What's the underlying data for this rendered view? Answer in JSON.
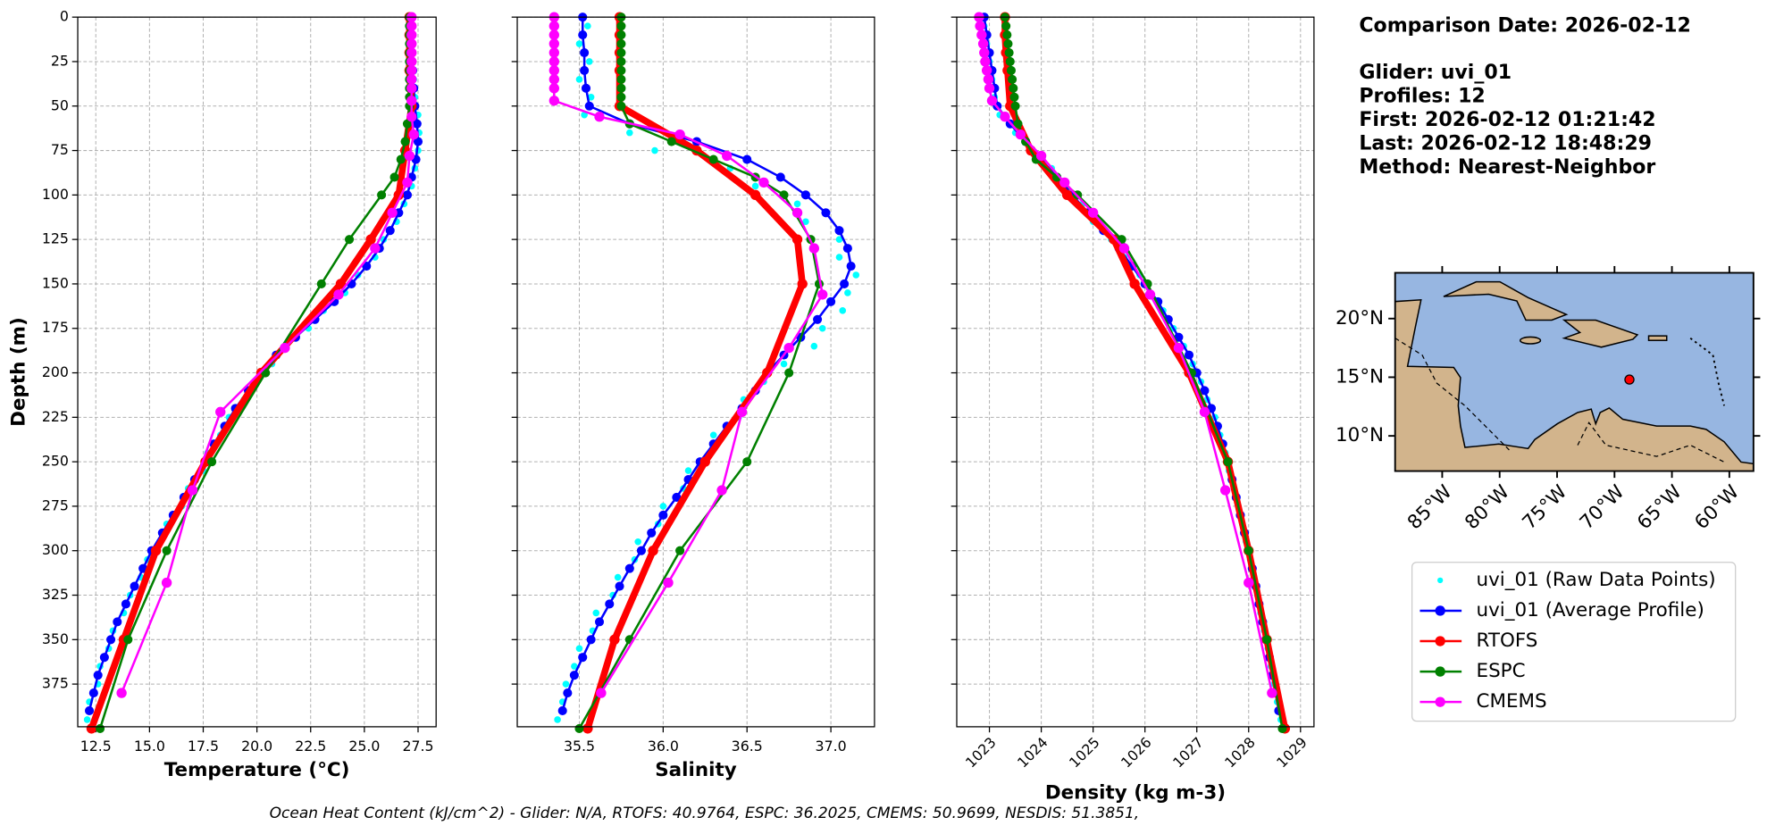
{
  "info_lines": [
    "Comparison Date: 2026-02-12",
    "Glider: uvi_01",
    "Profiles: 12",
    "First: 2026-02-12 01:21:42",
    "Last: 2026-02-12 18:48:29",
    "Method: Nearest-Neighbor"
  ],
  "footer": "Ocean Heat Content (kJ/cm^2) - Glider: N/A,  RTOFS: 40.9764,  ESPC: 36.2025,  CMEMS: 50.9699,  NESDIS: 51.3851,",
  "depth_axis": {
    "label": "Depth (m)",
    "lim": [
      0,
      399
    ],
    "ticks": [
      0,
      25,
      50,
      75,
      100,
      125,
      150,
      175,
      200,
      225,
      250,
      275,
      300,
      325,
      350,
      375
    ]
  },
  "series_depths": [
    [
      5,
      15,
      25,
      35,
      45,
      55,
      65,
      75,
      85,
      95,
      105,
      115,
      125,
      135,
      145,
      155,
      165,
      175,
      185,
      195,
      205,
      215,
      225,
      235,
      245,
      255,
      265,
      275,
      285,
      295,
      305,
      315,
      325,
      335,
      345,
      355,
      365,
      375,
      385,
      395
    ],
    [
      0,
      10,
      20,
      30,
      40,
      50,
      60,
      70,
      80,
      90,
      100,
      110,
      120,
      130,
      140,
      150,
      160,
      170,
      180,
      190,
      200,
      210,
      220,
      230,
      240,
      250,
      260,
      270,
      280,
      290,
      300,
      310,
      320,
      330,
      340,
      350,
      360,
      370,
      380,
      390
    ],
    [
      0,
      10,
      20,
      30,
      50,
      75,
      100,
      125,
      150,
      200,
      250,
      300,
      350,
      400
    ],
    [
      0,
      5,
      10,
      15,
      20,
      25,
      30,
      35,
      40,
      45,
      50,
      60,
      70,
      80,
      90,
      100,
      125,
      150,
      200,
      250,
      300,
      350,
      400
    ],
    [
      0,
      5,
      10,
      15,
      20,
      25,
      30,
      35,
      40,
      47,
      56,
      66,
      78,
      93,
      110,
      130,
      156,
      186,
      222,
      266,
      318,
      380
    ]
  ],
  "chart_data": [
    {
      "type": "line",
      "xlabel": "Temperature (°C)",
      "xlim": [
        11.66,
        28.34
      ],
      "grid": true,
      "xticks": [
        12.5,
        {
          "value": 15,
          "label": "15.0"
        },
        17.5,
        {
          "value": 20,
          "label": "20.0"
        },
        22.5,
        {
          "value": 25,
          "label": "25.0"
        },
        27.5
      ],
      "series": [
        {
          "name": "uvi_01 (Raw Data Points)",
          "marker_only": true,
          "color": "#00ffff",
          "values": [
            27.2,
            27.25,
            27.2,
            27.3,
            27.35,
            27.5,
            27.55,
            27.5,
            27.35,
            27.2,
            26.85,
            26.5,
            25.9,
            25.5,
            24.7,
            24.1,
            23.1,
            22.4,
            21.3,
            20.7,
            19.9,
            19.4,
            18.7,
            18.3,
            17.7,
            17.5,
            16.8,
            16.5,
            15.8,
            15.5,
            14.9,
            14.6,
            14.1,
            13.8,
            13.3,
            13.1,
            12.7,
            12.6,
            12.2,
            12.1
          ]
        },
        {
          "name": "uvi_01 (Average Profile)",
          "color": "#0000ff",
          "values": [
            27.2,
            27.2,
            27.2,
            27.25,
            27.3,
            27.35,
            27.45,
            27.5,
            27.4,
            27.2,
            27.0,
            26.6,
            26.2,
            25.7,
            25.1,
            24.4,
            23.6,
            22.7,
            21.8,
            20.9,
            20.2,
            19.6,
            19.0,
            18.5,
            18.0,
            17.6,
            17.1,
            16.6,
            16.1,
            15.6,
            15.1,
            14.7,
            14.3,
            13.9,
            13.5,
            13.2,
            12.9,
            12.6,
            12.4,
            12.2
          ]
        },
        {
          "name": "RTOFS",
          "color": "#ff0000",
          "values": [
            27.1,
            27.1,
            27.1,
            27.1,
            27.2,
            26.9,
            26.6,
            25.3,
            23.9,
            20.2,
            17.6,
            15.3,
            13.8,
            12.3
          ]
        },
        {
          "name": "ESPC",
          "color": "#008000",
          "values": [
            27.1,
            27.1,
            27.1,
            27.1,
            27.1,
            27.1,
            27.1,
            27.1,
            27.1,
            27.1,
            27.1,
            27.0,
            26.9,
            26.7,
            26.4,
            25.8,
            24.3,
            23.0,
            20.4,
            17.9,
            15.8,
            14.0,
            12.7
          ]
        },
        {
          "name": "CMEMS",
          "color": "#ff00ff",
          "values": [
            27.2,
            27.2,
            27.2,
            27.2,
            27.2,
            27.2,
            27.2,
            27.2,
            27.2,
            27.2,
            27.2,
            27.3,
            27.1,
            27.0,
            26.3,
            25.5,
            23.8,
            21.3,
            18.3,
            17.0,
            15.8,
            13.7
          ]
        }
      ]
    },
    {
      "type": "line",
      "xlabel": "Salinity",
      "xlim": [
        35.13,
        37.26
      ],
      "grid": true,
      "xticks": [
        35.5,
        {
          "value": 36,
          "label": "36.0"
        },
        36.5,
        {
          "value": 37,
          "label": "37.0"
        }
      ],
      "series": [
        {
          "marker_only": true,
          "color": "#00ffff",
          "values": [
            35.55,
            35.5,
            35.56,
            35.5,
            35.57,
            35.53,
            35.8,
            35.95,
            36.4,
            36.55,
            36.8,
            36.85,
            37.05,
            37.05,
            37.15,
            37.1,
            37.07,
            36.95,
            36.9,
            36.72,
            36.6,
            36.48,
            36.45,
            36.3,
            36.28,
            36.15,
            36.12,
            36.0,
            35.97,
            35.85,
            35.83,
            35.73,
            35.7,
            35.6,
            35.58,
            35.5,
            35.47,
            35.42,
            35.4,
            35.37
          ]
        },
        {
          "color": "#0000ff",
          "values": [
            35.52,
            35.52,
            35.53,
            35.53,
            35.54,
            35.56,
            35.8,
            36.2,
            36.5,
            36.7,
            36.85,
            36.97,
            37.05,
            37.1,
            37.12,
            37.08,
            37.0,
            36.92,
            36.82,
            36.72,
            36.62,
            36.55,
            36.47,
            36.38,
            36.3,
            36.22,
            36.15,
            36.08,
            36.0,
            35.93,
            35.87,
            35.8,
            35.74,
            35.68,
            35.62,
            35.57,
            35.52,
            35.47,
            35.43,
            35.4
          ]
        },
        {
          "color": "#ff0000",
          "values": [
            35.74,
            35.74,
            35.74,
            35.74,
            35.74,
            36.2,
            36.55,
            36.8,
            36.83,
            36.62,
            36.25,
            35.94,
            35.71,
            35.55
          ]
        },
        {
          "color": "#008000",
          "values": [
            35.75,
            35.75,
            35.75,
            35.75,
            35.75,
            35.75,
            35.75,
            35.75,
            35.75,
            35.75,
            35.75,
            35.8,
            36.05,
            36.3,
            36.55,
            36.72,
            36.88,
            36.93,
            36.75,
            36.5,
            36.1,
            35.8,
            35.5
          ]
        },
        {
          "color": "#ff00ff",
          "values": [
            35.35,
            35.35,
            35.35,
            35.35,
            35.35,
            35.35,
            35.35,
            35.35,
            35.35,
            35.35,
            35.62,
            36.1,
            36.38,
            36.6,
            36.8,
            36.9,
            36.95,
            36.75,
            36.47,
            36.35,
            36.03,
            35.63
          ]
        }
      ]
    },
    {
      "type": "line",
      "xlabel": "Density (kg m-3)",
      "xlim": [
        1022.37,
        1029.26
      ],
      "grid": true,
      "xticks": [
        1023,
        1024,
        1025,
        1026,
        1027,
        1028,
        1029
      ],
      "series": [
        {
          "marker_only": true,
          "color": "#00ffff",
          "values": [
            1022.9,
            1022.95,
            1023.0,
            1023.05,
            1023.1,
            1023.2,
            1023.5,
            1023.8,
            1024.2,
            1024.4,
            1024.8,
            1025.0,
            1025.35,
            1025.6,
            1025.9,
            1026.1,
            1026.35,
            1026.55,
            1026.75,
            1026.92,
            1027.08,
            1027.2,
            1027.35,
            1027.45,
            1027.55,
            1027.62,
            1027.72,
            1027.8,
            1027.88,
            1027.95,
            1028.03,
            1028.1,
            1028.17,
            1028.23,
            1028.3,
            1028.37,
            1028.43,
            1028.49,
            1028.55,
            1028.62
          ]
        },
        {
          "color": "#0000ff",
          "values": [
            1022.9,
            1022.95,
            1023.0,
            1023.05,
            1023.1,
            1023.15,
            1023.4,
            1023.7,
            1024.0,
            1024.3,
            1024.6,
            1024.9,
            1025.2,
            1025.5,
            1025.75,
            1026.0,
            1026.25,
            1026.45,
            1026.65,
            1026.85,
            1027.0,
            1027.15,
            1027.28,
            1027.4,
            1027.5,
            1027.6,
            1027.68,
            1027.76,
            1027.84,
            1027.92,
            1028.0,
            1028.07,
            1028.14,
            1028.2,
            1028.27,
            1028.33,
            1028.4,
            1028.46,
            1028.52,
            1028.58
          ]
        },
        {
          "color": "#ff0000",
          "values": [
            1023.3,
            1023.3,
            1023.32,
            1023.35,
            1023.4,
            1023.8,
            1024.5,
            1025.4,
            1025.8,
            1026.85,
            1027.6,
            1028.0,
            1028.35,
            1028.7
          ]
        },
        {
          "color": "#008000",
          "values": [
            1023.3,
            1023.32,
            1023.34,
            1023.36,
            1023.38,
            1023.4,
            1023.42,
            1023.44,
            1023.46,
            1023.48,
            1023.5,
            1023.55,
            1023.7,
            1023.9,
            1024.3,
            1024.7,
            1025.55,
            1026.05,
            1026.9,
            1027.6,
            1028.0,
            1028.35,
            1028.65
          ]
        },
        {
          "color": "#ff00ff",
          "values": [
            1022.8,
            1022.82,
            1022.85,
            1022.88,
            1022.9,
            1022.92,
            1022.95,
            1022.98,
            1023.0,
            1023.05,
            1023.3,
            1023.6,
            1024.0,
            1024.45,
            1025.0,
            1025.6,
            1026.1,
            1026.65,
            1027.15,
            1027.55,
            1028.0,
            1028.45
          ]
        }
      ]
    }
  ],
  "map": {
    "lonlim": [
      -89.1,
      -57.9
    ],
    "latlim": [
      7.0,
      23.9
    ],
    "lon_ticks": [
      {
        "value": -85,
        "label": "85°W"
      },
      {
        "value": -80,
        "label": "80°W"
      },
      {
        "value": -75,
        "label": "75°W"
      },
      {
        "value": -70,
        "label": "70°W"
      },
      {
        "value": -65,
        "label": "65°W"
      },
      {
        "value": -60,
        "label": "60°W"
      }
    ],
    "lat_ticks": [
      {
        "value": 10,
        "label": "10°N"
      },
      {
        "value": 15,
        "label": "15°N"
      },
      {
        "value": 20,
        "label": "20°N"
      }
    ],
    "glider": {
      "lon": -68.7,
      "lat": 14.8,
      "color": "#ff0000"
    }
  }
}
